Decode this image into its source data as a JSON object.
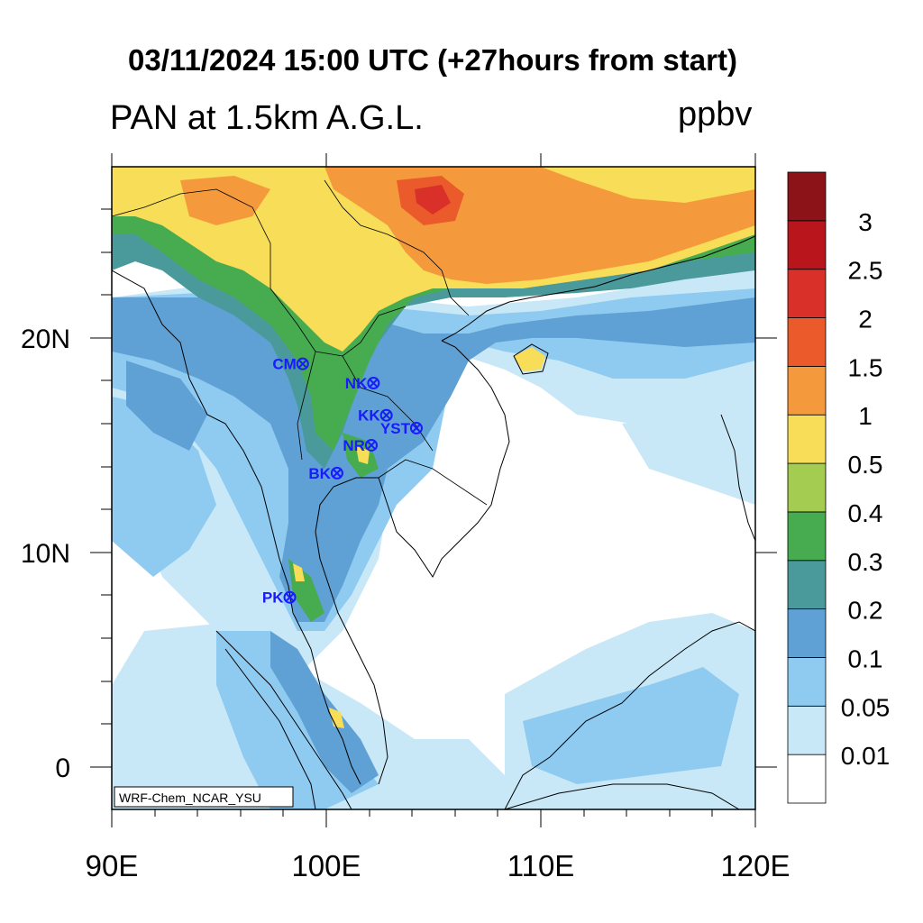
{
  "header": {
    "title": "03/11/2024 15:00 UTC (+27hours from start)",
    "variable": "PAN at 1.5km A.G.L.",
    "units": "ppbv"
  },
  "map": {
    "lon_range": [
      90,
      122
    ],
    "lat_range": [
      -2,
      28
    ],
    "x_ticks": [
      {
        "label": "90E",
        "lon": 90
      },
      {
        "label": "100E",
        "lon": 100
      },
      {
        "label": "110E",
        "lon": 110
      },
      {
        "label": "120E",
        "lon": 120
      }
    ],
    "y_ticks": [
      {
        "label": "20N",
        "lat": 20
      },
      {
        "label": "10N",
        "lat": 10
      },
      {
        "label": "0",
        "lat": 0
      }
    ],
    "credit": "WRF-Chem_NCAR_YSU"
  },
  "stations": [
    {
      "label": "CM",
      "lon": 98.9,
      "lat": 18.8
    },
    {
      "label": "NK",
      "lon": 102.2,
      "lat": 17.9
    },
    {
      "label": "KK",
      "lon": 102.8,
      "lat": 16.4
    },
    {
      "label": "YST",
      "lon": 104.2,
      "lat": 15.8
    },
    {
      "label": "NR",
      "lon": 102.1,
      "lat": 15.0
    },
    {
      "label": "BK",
      "lon": 100.5,
      "lat": 13.7
    },
    {
      "label": "PK",
      "lon": 98.3,
      "lat": 7.9
    }
  ],
  "colorbar": {
    "levels": [
      "0.01",
      "0.05",
      "0.1",
      "0.2",
      "0.3",
      "0.4",
      "0.5",
      "1",
      "1.5",
      "2",
      "2.5",
      "3"
    ],
    "colors": [
      "#ffffff",
      "#c9e8f7",
      "#8fcbf0",
      "#5fa1d4",
      "#4b9a9b",
      "#47ac50",
      "#a3cc50",
      "#f7dd58",
      "#f59a3c",
      "#ea5a2a",
      "#d9302a",
      "#b8161c",
      "#8c1419"
    ]
  }
}
